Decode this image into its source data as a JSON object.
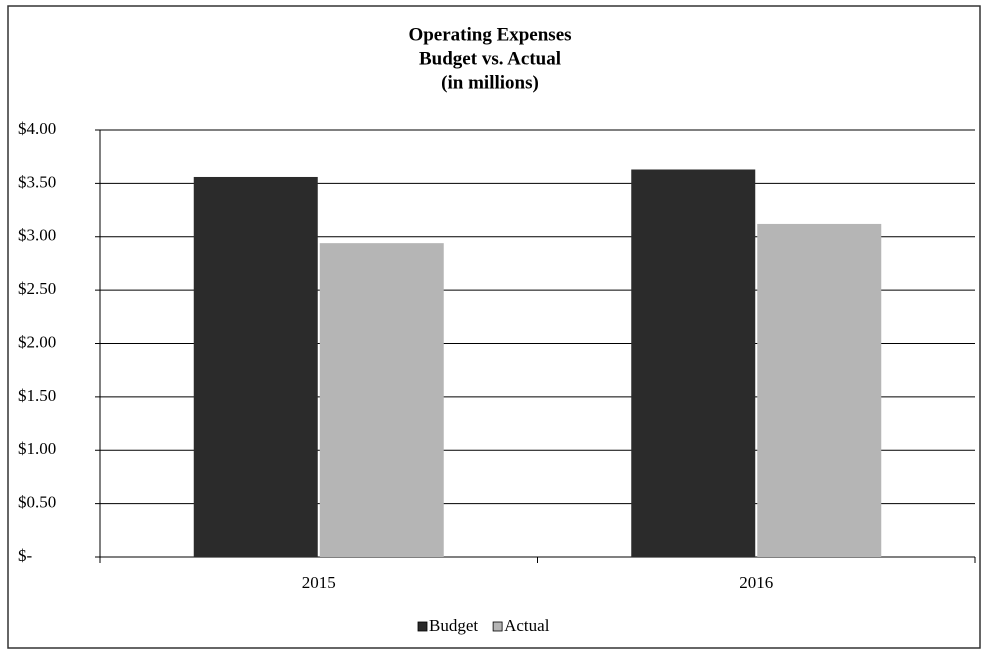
{
  "chart_data": {
    "type": "bar",
    "title": [
      "Operating Expenses",
      "Budget vs. Actual",
      "(in millions)"
    ],
    "categories": [
      "2015",
      "2016"
    ],
    "series": [
      {
        "name": "Budget",
        "color": "#2b2b2b",
        "values": [
          3.56,
          3.63
        ]
      },
      {
        "name": "Actual",
        "color": "#b5b5b5",
        "values": [
          2.94,
          3.12
        ]
      }
    ],
    "ylim": [
      0,
      4
    ],
    "yticks": [
      {
        "value": 0,
        "label": "$-"
      },
      {
        "value": 0.5,
        "label": "$0.50"
      },
      {
        "value": 1,
        "label": "$1.00"
      },
      {
        "value": 1.5,
        "label": "$1.50"
      },
      {
        "value": 2,
        "label": "$2.00"
      },
      {
        "value": 2.5,
        "label": "$2.50"
      },
      {
        "value": 3,
        "label": "$3.00"
      },
      {
        "value": 3.5,
        "label": "$3.50"
      },
      {
        "value": 4,
        "label": "$4.00"
      }
    ],
    "grid": true,
    "legend": "bottom"
  }
}
